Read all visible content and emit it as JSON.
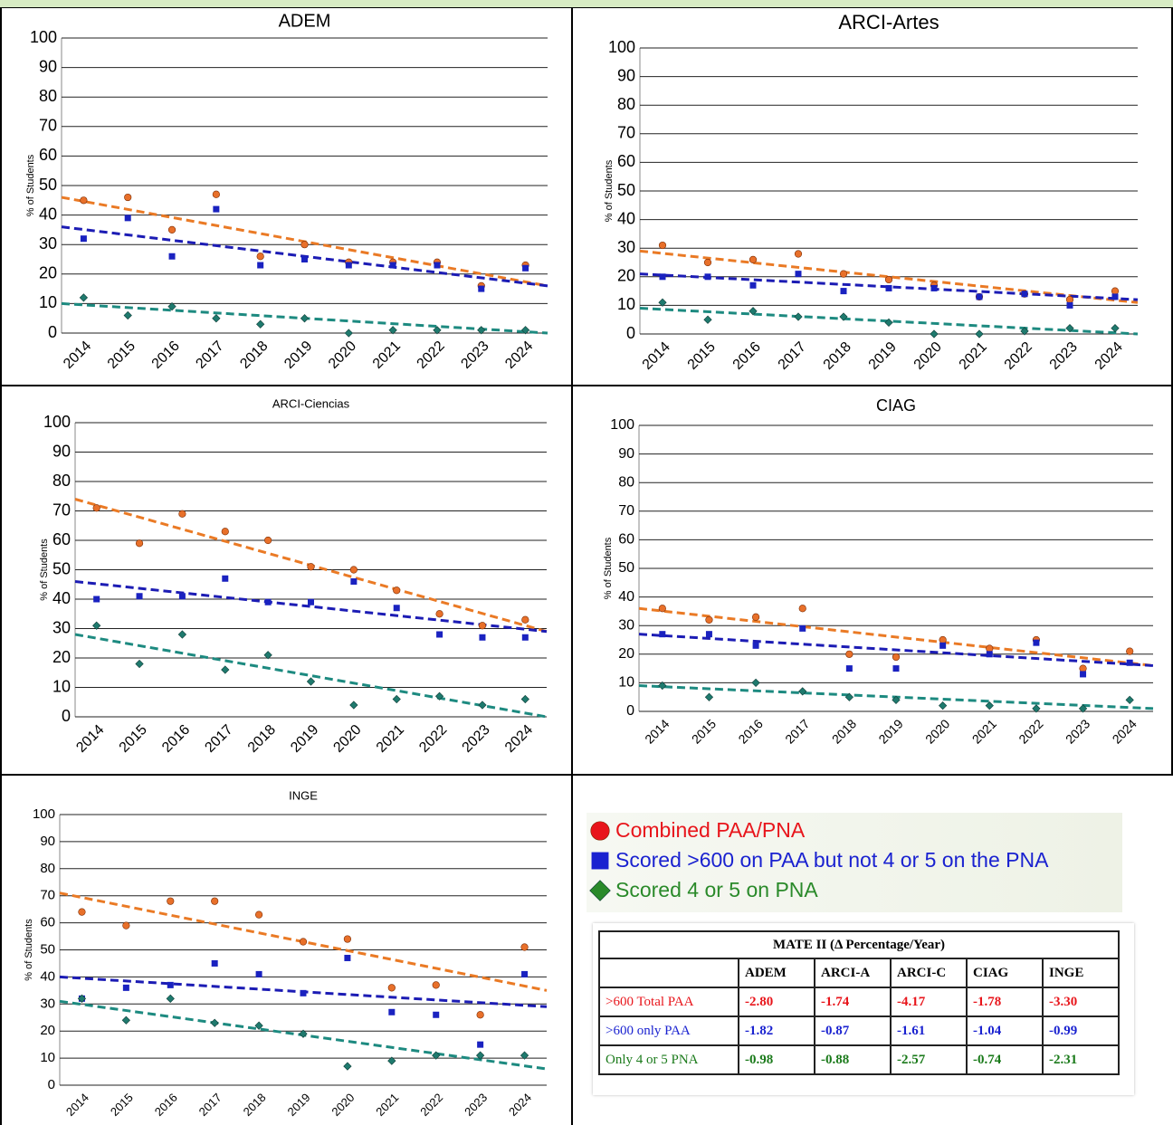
{
  "chart_data": [
    {
      "type": "scatter",
      "title": "ADEM",
      "ylabel": "% of Students",
      "categories": [
        "2014",
        "2015",
        "2016",
        "2017",
        "2018",
        "2019",
        "2020",
        "2021",
        "2022",
        "2023",
        "2024"
      ],
      "ylim": [
        0,
        100
      ],
      "yticks": [
        0,
        10,
        20,
        30,
        40,
        50,
        60,
        70,
        80,
        90,
        100
      ],
      "grid": true,
      "series": [
        {
          "marker": "circle",
          "color": "#e8702a",
          "values": [
            45,
            46,
            35,
            47,
            26,
            30,
            24,
            24,
            24,
            16,
            23
          ],
          "trend": [
            46,
            16
          ]
        },
        {
          "marker": "square",
          "color": "#1a22c0",
          "values": [
            32,
            39,
            26,
            42,
            23,
            25,
            23,
            23,
            23,
            15,
            22
          ],
          "trend": [
            36,
            16
          ]
        },
        {
          "marker": "diamond",
          "color": "#1f7a6e",
          "values": [
            12,
            6,
            9,
            5,
            3,
            5,
            0,
            1,
            1,
            1,
            1
          ],
          "trend": [
            10,
            0
          ]
        }
      ]
    },
    {
      "type": "scatter",
      "title": "ARCI-Artes",
      "ylabel": "% of Students",
      "categories": [
        "2014",
        "2015",
        "2016",
        "2017",
        "2018",
        "2019",
        "2020",
        "2021",
        "2022",
        "2023",
        "2024"
      ],
      "ylim": [
        0,
        100
      ],
      "yticks": [
        0,
        10,
        20,
        30,
        40,
        50,
        60,
        70,
        80,
        90,
        100
      ],
      "grid": true,
      "series": [
        {
          "marker": "circle",
          "color": "#e8702a",
          "values": [
            31,
            25,
            26,
            28,
            21,
            19,
            17,
            13,
            14,
            12,
            15
          ],
          "trend": [
            29,
            11
          ]
        },
        {
          "marker": "square",
          "color": "#1a22c0",
          "values": [
            20,
            20,
            17,
            21,
            15,
            16,
            16,
            13,
            14,
            10,
            13
          ],
          "trend": [
            21,
            12
          ]
        },
        {
          "marker": "diamond",
          "color": "#1f7a6e",
          "values": [
            11,
            5,
            8,
            6,
            6,
            4,
            0,
            0,
            1,
            2,
            2
          ],
          "trend": [
            9,
            0
          ]
        }
      ]
    },
    {
      "type": "scatter",
      "title": "ARCI-Ciencias",
      "ylabel": "% of Students",
      "categories": [
        "2014",
        "2015",
        "2016",
        "2017",
        "2018",
        "2019",
        "2020",
        "2021",
        "2022",
        "2023",
        "2024"
      ],
      "ylim": [
        0,
        100
      ],
      "yticks": [
        0,
        10,
        20,
        30,
        40,
        50,
        60,
        70,
        80,
        90,
        100
      ],
      "grid": true,
      "series": [
        {
          "marker": "circle",
          "color": "#e8702a",
          "values": [
            71,
            59,
            69,
            63,
            60,
            51,
            50,
            43,
            35,
            31,
            33
          ],
          "trend": [
            74,
            29
          ]
        },
        {
          "marker": "square",
          "color": "#1a22c0",
          "values": [
            40,
            41,
            41,
            47,
            39,
            39,
            46,
            37,
            28,
            27,
            27
          ],
          "trend": [
            46,
            29
          ]
        },
        {
          "marker": "diamond",
          "color": "#1f7a6e",
          "values": [
            31,
            18,
            28,
            16,
            21,
            12,
            4,
            6,
            7,
            4,
            6
          ],
          "trend": [
            28,
            0
          ]
        }
      ]
    },
    {
      "type": "scatter",
      "title": "CIAG",
      "ylabel": "% of Students",
      "categories": [
        "2014",
        "2015",
        "2016",
        "2017",
        "2018",
        "2019",
        "2020",
        "2021",
        "2022",
        "2023",
        "2024"
      ],
      "ylim": [
        0,
        100
      ],
      "yticks": [
        0,
        10,
        20,
        30,
        40,
        50,
        60,
        70,
        80,
        90,
        100
      ],
      "grid": true,
      "series": [
        {
          "marker": "circle",
          "color": "#e8702a",
          "values": [
            36,
            32,
            33,
            36,
            20,
            19,
            25,
            22,
            25,
            15,
            21
          ],
          "trend": [
            36,
            16
          ]
        },
        {
          "marker": "square",
          "color": "#1a22c0",
          "values": [
            27,
            27,
            23,
            29,
            15,
            15,
            23,
            20,
            24,
            13,
            17
          ],
          "trend": [
            27,
            16
          ]
        },
        {
          "marker": "diamond",
          "color": "#1f7a6e",
          "values": [
            9,
            5,
            10,
            7,
            5,
            4,
            2,
            2,
            1,
            1,
            4
          ],
          "trend": [
            9,
            1
          ]
        }
      ]
    },
    {
      "type": "scatter",
      "title": "INGE",
      "ylabel": "% of Students",
      "categories": [
        "2014",
        "2015",
        "2016",
        "2017",
        "2018",
        "2019",
        "2020",
        "2021",
        "2022",
        "2023",
        "2024"
      ],
      "ylim": [
        0,
        100
      ],
      "yticks": [
        0,
        10,
        20,
        30,
        40,
        50,
        60,
        70,
        80,
        90,
        100
      ],
      "grid": true,
      "series": [
        {
          "marker": "circle",
          "color": "#e8702a",
          "values": [
            64,
            59,
            68,
            68,
            63,
            53,
            54,
            36,
            37,
            26,
            51
          ],
          "trend": [
            71,
            35
          ]
        },
        {
          "marker": "square",
          "color": "#1a22c0",
          "values": [
            32,
            36,
            37,
            45,
            41,
            34,
            47,
            27,
            26,
            15,
            41
          ],
          "trend": [
            40,
            29
          ]
        },
        {
          "marker": "diamond",
          "color": "#1f7a6e",
          "values": [
            32,
            24,
            32,
            23,
            22,
            19,
            7,
            9,
            11,
            11,
            11
          ],
          "trend": [
            31,
            6
          ]
        }
      ]
    }
  ],
  "legend": [
    {
      "label": "Combined PAA/PNA",
      "marker": "circle",
      "color": "#e8151b"
    },
    {
      "label": "Scored >600 on PAA but not 4 or 5 on the PNA",
      "marker": "square",
      "color": "#1a22d0"
    },
    {
      "label": "Scored 4 or 5 on PNA",
      "marker": "diamond",
      "color": "#2a8a2a"
    }
  ],
  "table": {
    "title": "MATE II (Δ Percentage/Year)",
    "header": [
      "ADEM",
      "ARCI-A",
      "ARCI-C",
      "CIAG",
      "INGE"
    ],
    "rows": [
      {
        "label": ">600 Total PAA",
        "color": "#e8151b",
        "cells": [
          "-2.80",
          "-1.74",
          "-4.17",
          "-1.78",
          "-3.30"
        ]
      },
      {
        "label": ">600 only PAA",
        "color": "#1a22d0",
        "cells": [
          "-1.82",
          "-0.87",
          "-1.61",
          "-1.04",
          "-0.99"
        ]
      },
      {
        "label": "Only 4 or 5 PNA",
        "color": "#1a7a1a",
        "cells": [
          "-0.98",
          "-0.88",
          "-2.57",
          "-0.74",
          "-2.31"
        ]
      }
    ]
  }
}
